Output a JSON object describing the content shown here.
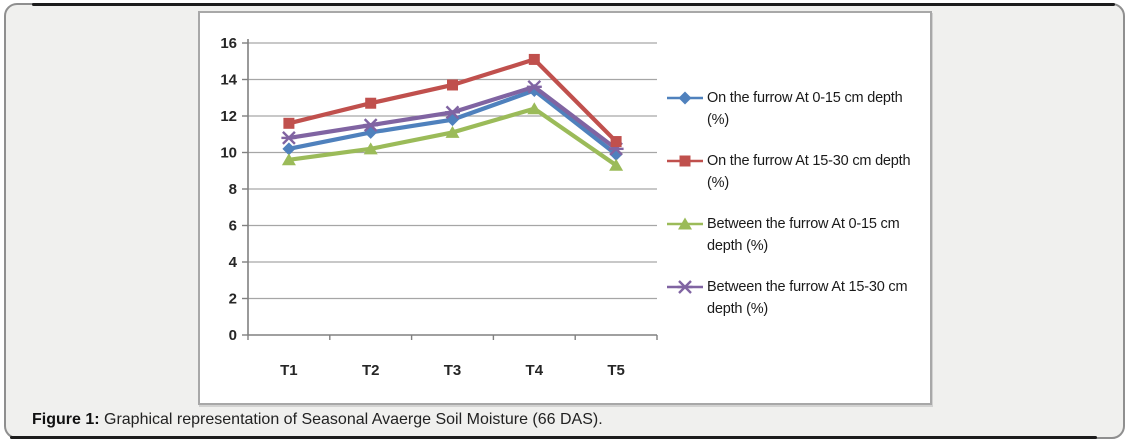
{
  "figure": {
    "caption_label": "Figure 1:",
    "caption_text": " Graphical representation of Seasonal Avaerge Soil Moisture (66 DAS)."
  },
  "chart_data": {
    "type": "line",
    "categories": [
      "T1",
      "T2",
      "T3",
      "T4",
      "T5"
    ],
    "series": [
      {
        "name": "On the furrow At 0-15 cm depth (%)",
        "color": "#4F81BD",
        "marker": "diamond",
        "values": [
          10.2,
          11.1,
          11.8,
          13.4,
          9.9
        ]
      },
      {
        "name": "On the furrow At 15-30 cm depth (%)",
        "color": "#C0504D",
        "marker": "square",
        "values": [
          11.6,
          12.7,
          13.7,
          15.1,
          10.6
        ]
      },
      {
        "name": "Between the furrow At 0-15 cm depth (%)",
        "color": "#9BBB59",
        "marker": "triangle",
        "values": [
          9.6,
          10.2,
          11.1,
          12.4,
          9.3
        ]
      },
      {
        "name": "Between the furrow At 15-30 cm depth (%)",
        "color": "#8064A2",
        "marker": "x",
        "values": [
          10.8,
          11.5,
          12.2,
          13.6,
          10.2
        ]
      }
    ],
    "draw_order": [
      0,
      2,
      3,
      1
    ],
    "title": "",
    "xlabel": "",
    "ylabel": "",
    "ylim": [
      0,
      16
    ],
    "yticks": [
      0,
      2,
      4,
      6,
      8,
      10,
      12,
      14,
      16
    ],
    "grid": true,
    "legend_position": "right"
  },
  "colors": {
    "panel_background": "#f0f0ee",
    "panel_border": "#8f8f8f",
    "rule": "#1c1c1c",
    "plot_background": "#ffffff",
    "plot_border": "#a8a8a8",
    "gridline": "#a6a6a6",
    "axis": "#808080",
    "tick_text": "#262626"
  }
}
